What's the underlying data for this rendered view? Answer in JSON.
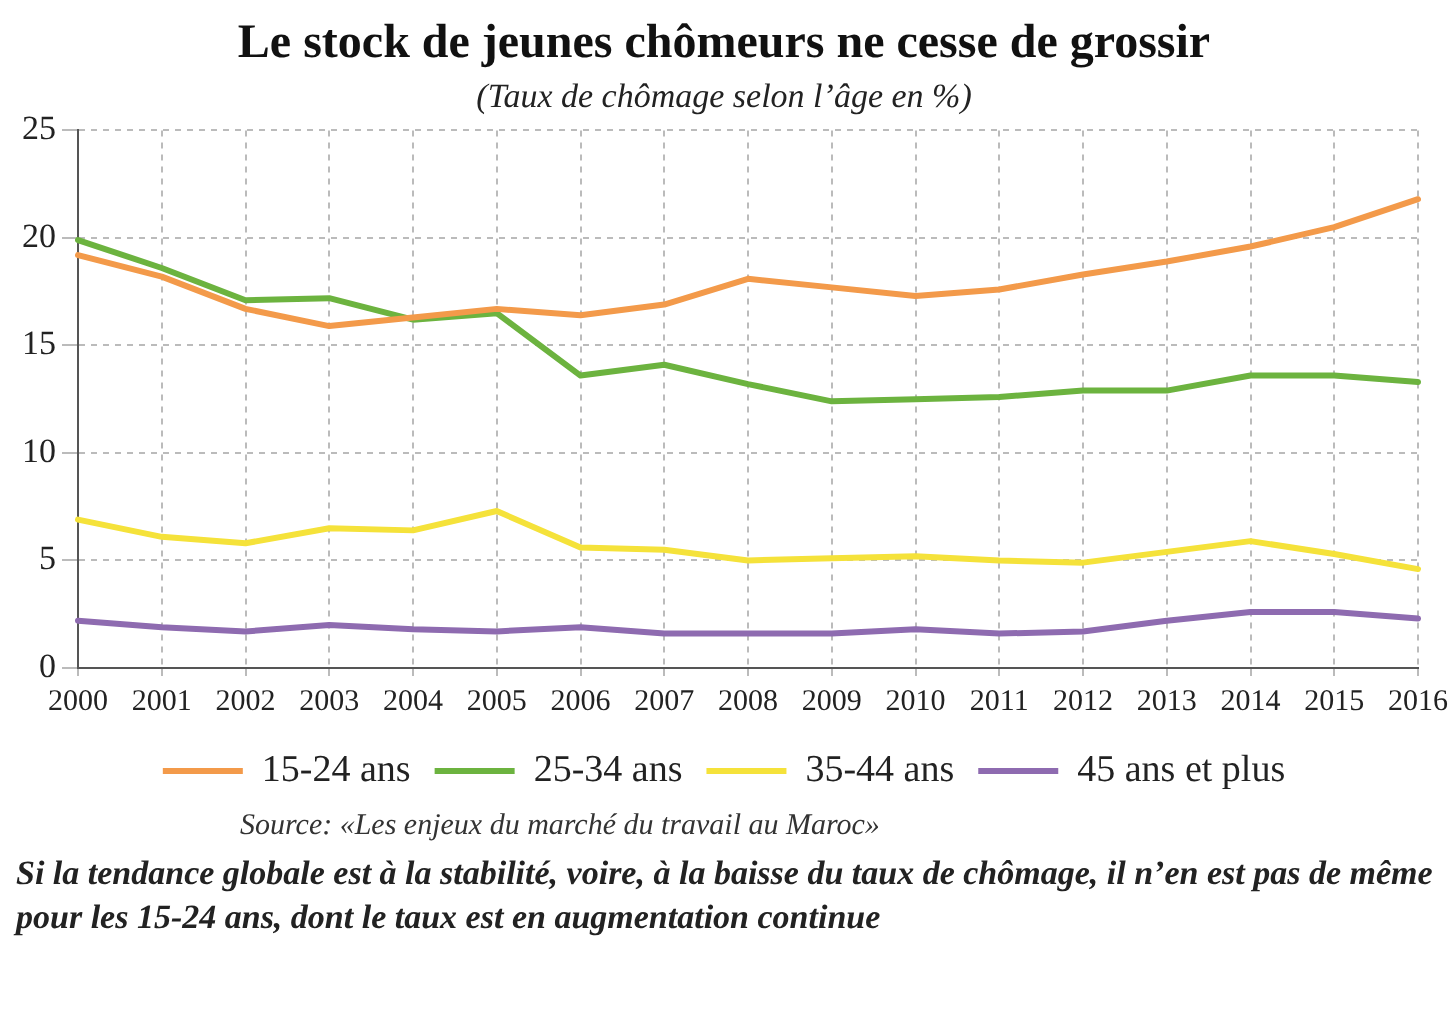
{
  "chart_data": {
    "type": "line",
    "title": "Le stock de jeunes chômeurs ne cesse de grossir",
    "subtitle": "(Taux de chômage selon l’âge en %)",
    "categories": [
      "2000",
      "2001",
      "2002",
      "2003",
      "2004",
      "2005",
      "2006",
      "2007",
      "2008",
      "2009",
      "2010",
      "2011",
      "2012",
      "2013",
      "2014",
      "2015",
      "2016"
    ],
    "series": [
      {
        "name": "15-24 ans",
        "color": "#f39a4a",
        "values": [
          19.2,
          18.2,
          16.7,
          15.9,
          16.3,
          16.7,
          16.4,
          16.9,
          18.1,
          17.7,
          17.3,
          17.6,
          18.3,
          18.9,
          19.6,
          20.5,
          21.8
        ]
      },
      {
        "name": "25-34 ans",
        "color": "#6cb33f",
        "values": [
          19.9,
          18.6,
          17.1,
          17.2,
          16.2,
          16.5,
          13.6,
          14.1,
          13.2,
          12.4,
          12.5,
          12.6,
          12.9,
          12.9,
          13.6,
          13.6,
          13.3
        ]
      },
      {
        "name": "35-44 ans",
        "color": "#f5e23a",
        "values": [
          6.9,
          6.1,
          5.8,
          6.5,
          6.4,
          7.3,
          5.6,
          5.5,
          5.0,
          5.1,
          5.2,
          5.0,
          4.9,
          5.4,
          5.9,
          5.3,
          4.6
        ]
      },
      {
        "name": "45 ans et plus",
        "color": "#8e6bb0",
        "values": [
          2.2,
          1.9,
          1.7,
          2.0,
          1.8,
          1.7,
          1.9,
          1.6,
          1.6,
          1.6,
          1.8,
          1.6,
          1.7,
          2.2,
          2.6,
          2.6,
          2.3
        ]
      }
    ],
    "ylim": [
      0,
      25
    ],
    "yticks": [
      0,
      5,
      10,
      15,
      20,
      25
    ],
    "grid": true,
    "legend": "bottom",
    "marker": "none",
    "line_style": "solid",
    "annotations": [
      "Source: «Les enjeux du marché du travail au Maroc»",
      "Si la tendance globale est à la stabilité, voire, à la baisse du taux de chômage, il n’en est pas de même pour les 15-24 ans, dont le taux est en augmentation continue"
    ]
  }
}
